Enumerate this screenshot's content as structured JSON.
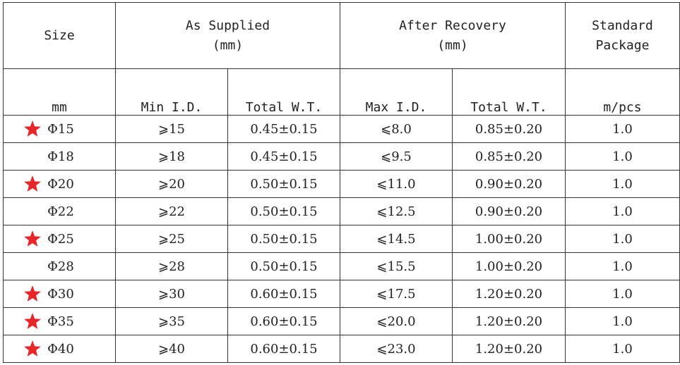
{
  "table": {
    "headers": {
      "size": "Size",
      "as_supplied": "As Supplied",
      "as_supplied_unit": "(mm)",
      "after_recovery": "After Recovery",
      "after_recovery_unit": "(mm)",
      "standard_package_line1": "Standard",
      "standard_package_line2": "Package"
    },
    "subheaders": {
      "size_unit": "mm",
      "min_id": "Min I.D.",
      "supplied_wt": "Total W.T.",
      "max_id": "Max I.D.",
      "recovered_wt": "Total W.T.",
      "package_unit": "m/pcs"
    },
    "star_color": "#e8262a",
    "rows": [
      {
        "starred": true,
        "size": "Φ15",
        "min_id": "⩾15",
        "supplied_wt": "0.45±0.15",
        "max_id": "⩽8.0",
        "recovered_wt": "0.85±0.20",
        "package": "1.0"
      },
      {
        "starred": false,
        "size": "Φ18",
        "min_id": "⩾18",
        "supplied_wt": "0.45±0.15",
        "max_id": "⩽9.5",
        "recovered_wt": "0.85±0.20",
        "package": "1.0"
      },
      {
        "starred": true,
        "size": "Φ20",
        "min_id": "⩾20",
        "supplied_wt": "0.50±0.15",
        "max_id": "⩽11.0",
        "recovered_wt": "0.90±0.20",
        "package": "1.0"
      },
      {
        "starred": false,
        "size": "Φ22",
        "min_id": "⩾22",
        "supplied_wt": "0.50±0.15",
        "max_id": "⩽12.5",
        "recovered_wt": "0.90±0.20",
        "package": "1.0"
      },
      {
        "starred": true,
        "size": "Φ25",
        "min_id": "⩾25",
        "supplied_wt": "0.50±0.15",
        "max_id": "⩽14.5",
        "recovered_wt": "1.00±0.20",
        "package": "1.0"
      },
      {
        "starred": false,
        "size": "Φ28",
        "min_id": "⩾28",
        "supplied_wt": "0.50±0.15",
        "max_id": "⩽15.5",
        "recovered_wt": "1.00±0.20",
        "package": "1.0"
      },
      {
        "starred": true,
        "size": "Φ30",
        "min_id": "⩾30",
        "supplied_wt": "0.60±0.15",
        "max_id": "⩽17.5",
        "recovered_wt": "1.20±0.20",
        "package": "1.0"
      },
      {
        "starred": true,
        "size": "Φ35",
        "min_id": "⩾35",
        "supplied_wt": "0.60±0.15",
        "max_id": "⩽20.0",
        "recovered_wt": "1.20±0.20",
        "package": "1.0"
      },
      {
        "starred": true,
        "size": "Φ40",
        "min_id": "⩾40",
        "supplied_wt": "0.60±0.15",
        "max_id": "⩽23.0",
        "recovered_wt": "1.20±0.20",
        "package": "1.0"
      }
    ]
  }
}
